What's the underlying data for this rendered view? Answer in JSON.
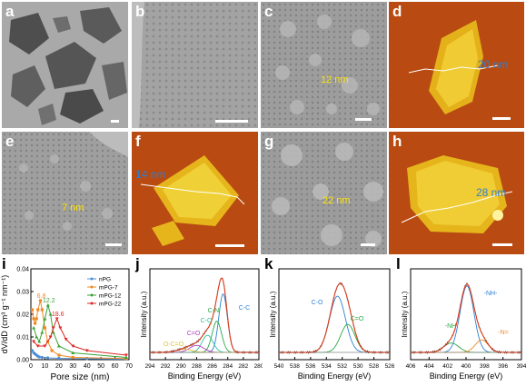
{
  "panels": {
    "a": {
      "label": "a"
    },
    "b": {
      "label": "b"
    },
    "c": {
      "label": "c",
      "annotation": "12 nm"
    },
    "d": {
      "label": "d",
      "annotation": "20 nm"
    },
    "e": {
      "label": "e",
      "annotation": "7 nm"
    },
    "f": {
      "label": "f",
      "annotation": "14 nm"
    },
    "g": {
      "label": "g",
      "annotation": "22 nm"
    },
    "h": {
      "label": "h",
      "annotation": "28 nm"
    }
  },
  "chart_data": [
    {
      "panel": "i",
      "type": "line",
      "xlabel": "Pore size (nm)",
      "ylabel": "dV/dD (cm³ g⁻¹ nm⁻¹)",
      "xlim": [
        0,
        70
      ],
      "ylim": [
        0,
        0.04
      ],
      "xticks": [
        "0",
        "10",
        "20",
        "30",
        "40",
        "50",
        "60",
        "70"
      ],
      "yticks": [
        "0.00",
        "0.01",
        "0.02",
        "0.03",
        "0.04"
      ],
      "legend_position": "top-right",
      "series": [
        {
          "name": "nPG",
          "color": "#4a8fd6",
          "x": [
            1,
            2,
            3,
            4,
            5,
            6,
            8,
            12,
            20,
            40,
            68
          ],
          "y": [
            0.004,
            0.003,
            0.0025,
            0.002,
            0.0015,
            0.0012,
            0.001,
            0.0008,
            0.0006,
            0.0004,
            0.0002
          ]
        },
        {
          "name": "mPG-7",
          "color": "#f08a24",
          "x": [
            1,
            2,
            3,
            4,
            5,
            6.8,
            8,
            10,
            12,
            15,
            20,
            30,
            68
          ],
          "y": [
            0.022,
            0.018,
            0.016,
            0.018,
            0.022,
            0.026,
            0.022,
            0.014,
            0.008,
            0.004,
            0.002,
            0.001,
            0.0005
          ]
        },
        {
          "name": "mPG-12",
          "color": "#3aa335",
          "x": [
            2,
            4,
            6,
            8,
            10,
            12.2,
            14,
            16,
            20,
            30,
            68
          ],
          "y": [
            0.014,
            0.01,
            0.008,
            0.012,
            0.018,
            0.024,
            0.02,
            0.012,
            0.006,
            0.003,
            0.001
          ]
        },
        {
          "name": "mPG-22",
          "color": "#e02626",
          "x": [
            2,
            5,
            10,
            14,
            16,
            18.6,
            21,
            25,
            30,
            40,
            68
          ],
          "y": [
            0.008,
            0.006,
            0.006,
            0.01,
            0.014,
            0.018,
            0.014,
            0.009,
            0.006,
            0.004,
            0.002
          ]
        }
      ],
      "annotations": [
        {
          "text": "6.8",
          "x": 6.8,
          "y": 0.026,
          "color": "#f08a24"
        },
        {
          "text": "12.2",
          "x": 12.2,
          "y": 0.024,
          "color": "#3aa335"
        },
        {
          "text": "18.6",
          "x": 18.6,
          "y": 0.018,
          "color": "#e02626"
        }
      ]
    },
    {
      "panel": "j",
      "type": "line",
      "xlabel": "Binding Energy (eV)",
      "ylabel": "Intensity (a.u.)",
      "xlim": [
        294,
        280
      ],
      "reversed_x": true,
      "xticks": [
        "294",
        "292",
        "290",
        "288",
        "286",
        "284",
        "282",
        "280"
      ],
      "peaks": [
        {
          "label": "C-C",
          "center": 284.6,
          "height": 0.75,
          "width": 0.55,
          "color": "#2f7fd2"
        },
        {
          "label": "C-N",
          "center": 285.4,
          "height": 0.4,
          "width": 0.6,
          "color": "#28a745"
        },
        {
          "label": "C-O",
          "center": 286.6,
          "height": 0.22,
          "width": 0.7,
          "color": "#2fbfa0"
        },
        {
          "label": "C=O",
          "center": 288.0,
          "height": 0.09,
          "width": 0.9,
          "color": "#b03ac0"
        },
        {
          "label": "O-C=O",
          "center": 289.6,
          "height": 0.04,
          "width": 1.0,
          "color": "#e0c23a"
        }
      ],
      "envelope_color": "#e04020"
    },
    {
      "panel": "k",
      "type": "line",
      "xlabel": "Binding Energy (eV)",
      "ylabel": "Intensity (a.u.)",
      "xlim": [
        540,
        526
      ],
      "reversed_x": true,
      "xticks": [
        "540",
        "538",
        "536",
        "534",
        "532",
        "530",
        "528",
        "526"
      ],
      "peaks": [
        {
          "label": "C-O",
          "center": 532.6,
          "height": 0.72,
          "width": 1.0,
          "color": "#2f7fd2"
        },
        {
          "label": "C=O",
          "center": 531.3,
          "height": 0.36,
          "width": 0.9,
          "color": "#28a745"
        }
      ],
      "envelope_color": "#e04020"
    },
    {
      "panel": "l",
      "type": "line",
      "xlabel": "Binding Energy (eV)",
      "ylabel": "Intensity (a.u.)",
      "xlim": [
        406,
        394
      ],
      "reversed_x": true,
      "xticks": [
        "406",
        "404",
        "402",
        "400",
        "398",
        "396",
        "394"
      ],
      "peaks": [
        {
          "label": "-NH-",
          "center": 399.9,
          "height": 0.85,
          "width": 0.75,
          "color": "#2f7fd2"
        },
        {
          "label": "-NH",
          "center": 401.6,
          "height": 0.12,
          "width": 0.8,
          "color": "#28a745"
        },
        {
          "label": "-N=",
          "center": 398.3,
          "height": 0.16,
          "width": 0.7,
          "color": "#f08a24"
        }
      ],
      "envelope_color": "#e04020"
    }
  ],
  "colors": {
    "annotation_tem": "#ffe400",
    "annotation_afm": "#2f7fd2"
  }
}
